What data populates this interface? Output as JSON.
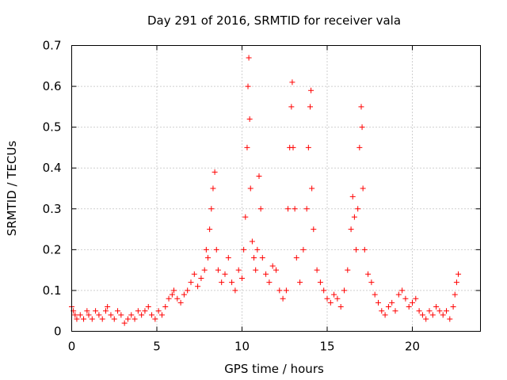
{
  "chart_data": {
    "type": "scatter",
    "title": "Day 291 of 2016, SRMTID for receiver vala",
    "xlabel": "GPS time / hours",
    "ylabel": "SRMTID / TECUs",
    "xlim": [
      0,
      24
    ],
    "ylim": [
      0,
      0.7
    ],
    "x_ticks": [
      0,
      5,
      10,
      15,
      20
    ],
    "x_tick_labels": [
      "0",
      "5",
      "10",
      "15",
      "20"
    ],
    "y_ticks": [
      0,
      0.1,
      0.2,
      0.3,
      0.4,
      0.5,
      0.6,
      0.7
    ],
    "y_tick_labels": [
      "0",
      "0.1",
      "0.2",
      "0.3",
      "0.4",
      "0.5",
      "0.6",
      "0.7"
    ],
    "grid": true,
    "marker": "+",
    "color": "#ff0000",
    "series": [
      {
        "name": "SRMTID",
        "points": [
          [
            0.0,
            0.06
          ],
          [
            0.1,
            0.05
          ],
          [
            0.2,
            0.04
          ],
          [
            0.3,
            0.03
          ],
          [
            0.5,
            0.04
          ],
          [
            0.7,
            0.03
          ],
          [
            0.9,
            0.05
          ],
          [
            1.0,
            0.04
          ],
          [
            1.2,
            0.03
          ],
          [
            1.4,
            0.05
          ],
          [
            1.6,
            0.04
          ],
          [
            1.8,
            0.03
          ],
          [
            2.0,
            0.05
          ],
          [
            2.1,
            0.06
          ],
          [
            2.3,
            0.04
          ],
          [
            2.5,
            0.03
          ],
          [
            2.7,
            0.05
          ],
          [
            2.9,
            0.04
          ],
          [
            3.1,
            0.02
          ],
          [
            3.3,
            0.03
          ],
          [
            3.5,
            0.04
          ],
          [
            3.7,
            0.03
          ],
          [
            3.9,
            0.05
          ],
          [
            4.1,
            0.04
          ],
          [
            4.3,
            0.05
          ],
          [
            4.5,
            0.06
          ],
          [
            4.7,
            0.04
          ],
          [
            4.9,
            0.03
          ],
          [
            5.1,
            0.05
          ],
          [
            5.3,
            0.04
          ],
          [
            5.5,
            0.06
          ],
          [
            5.7,
            0.08
          ],
          [
            5.9,
            0.09
          ],
          [
            6.0,
            0.1
          ],
          [
            6.2,
            0.08
          ],
          [
            6.4,
            0.07
          ],
          [
            6.6,
            0.09
          ],
          [
            6.8,
            0.1
          ],
          [
            7.0,
            0.12
          ],
          [
            7.2,
            0.14
          ],
          [
            7.4,
            0.11
          ],
          [
            7.6,
            0.13
          ],
          [
            7.8,
            0.15
          ],
          [
            7.9,
            0.2
          ],
          [
            8.0,
            0.18
          ],
          [
            8.1,
            0.25
          ],
          [
            8.2,
            0.3
          ],
          [
            8.3,
            0.35
          ],
          [
            8.4,
            0.39
          ],
          [
            8.5,
            0.2
          ],
          [
            8.6,
            0.15
          ],
          [
            8.8,
            0.12
          ],
          [
            9.0,
            0.14
          ],
          [
            9.2,
            0.18
          ],
          [
            9.4,
            0.12
          ],
          [
            9.6,
            0.1
          ],
          [
            9.8,
            0.15
          ],
          [
            10.0,
            0.13
          ],
          [
            10.1,
            0.2
          ],
          [
            10.2,
            0.28
          ],
          [
            10.3,
            0.45
          ],
          [
            10.35,
            0.6
          ],
          [
            10.4,
            0.67
          ],
          [
            10.45,
            0.52
          ],
          [
            10.5,
            0.35
          ],
          [
            10.6,
            0.22
          ],
          [
            10.7,
            0.18
          ],
          [
            10.8,
            0.15
          ],
          [
            10.9,
            0.2
          ],
          [
            11.0,
            0.38
          ],
          [
            11.1,
            0.3
          ],
          [
            11.2,
            0.18
          ],
          [
            11.4,
            0.14
          ],
          [
            11.6,
            0.12
          ],
          [
            11.8,
            0.16
          ],
          [
            12.0,
            0.15
          ],
          [
            12.2,
            0.1
          ],
          [
            12.4,
            0.08
          ],
          [
            12.6,
            0.1
          ],
          [
            12.7,
            0.3
          ],
          [
            12.8,
            0.45
          ],
          [
            12.9,
            0.55
          ],
          [
            12.95,
            0.61
          ],
          [
            13.0,
            0.45
          ],
          [
            13.1,
            0.3
          ],
          [
            13.2,
            0.18
          ],
          [
            13.4,
            0.12
          ],
          [
            13.6,
            0.2
          ],
          [
            13.8,
            0.3
          ],
          [
            13.9,
            0.45
          ],
          [
            14.0,
            0.55
          ],
          [
            14.05,
            0.59
          ],
          [
            14.1,
            0.35
          ],
          [
            14.2,
            0.25
          ],
          [
            14.4,
            0.15
          ],
          [
            14.6,
            0.12
          ],
          [
            14.8,
            0.1
          ],
          [
            15.0,
            0.08
          ],
          [
            15.2,
            0.07
          ],
          [
            15.4,
            0.09
          ],
          [
            15.6,
            0.08
          ],
          [
            15.8,
            0.06
          ],
          [
            16.0,
            0.1
          ],
          [
            16.2,
            0.15
          ],
          [
            16.4,
            0.25
          ],
          [
            16.5,
            0.33
          ],
          [
            16.6,
            0.28
          ],
          [
            16.7,
            0.2
          ],
          [
            16.8,
            0.3
          ],
          [
            16.9,
            0.45
          ],
          [
            17.0,
            0.55
          ],
          [
            17.05,
            0.5
          ],
          [
            17.1,
            0.35
          ],
          [
            17.2,
            0.2
          ],
          [
            17.4,
            0.14
          ],
          [
            17.6,
            0.12
          ],
          [
            17.8,
            0.09
          ],
          [
            18.0,
            0.07
          ],
          [
            18.2,
            0.05
          ],
          [
            18.4,
            0.04
          ],
          [
            18.6,
            0.06
          ],
          [
            18.8,
            0.07
          ],
          [
            19.0,
            0.05
          ],
          [
            19.2,
            0.09
          ],
          [
            19.4,
            0.1
          ],
          [
            19.6,
            0.08
          ],
          [
            19.8,
            0.06
          ],
          [
            20.0,
            0.07
          ],
          [
            20.2,
            0.08
          ],
          [
            20.4,
            0.05
          ],
          [
            20.6,
            0.04
          ],
          [
            20.8,
            0.03
          ],
          [
            21.0,
            0.05
          ],
          [
            21.2,
            0.04
          ],
          [
            21.4,
            0.06
          ],
          [
            21.6,
            0.05
          ],
          [
            21.8,
            0.04
          ],
          [
            22.0,
            0.05
          ],
          [
            22.2,
            0.03
          ],
          [
            22.4,
            0.06
          ],
          [
            22.5,
            0.09
          ],
          [
            22.6,
            0.12
          ],
          [
            22.7,
            0.14
          ]
        ]
      }
    ]
  }
}
